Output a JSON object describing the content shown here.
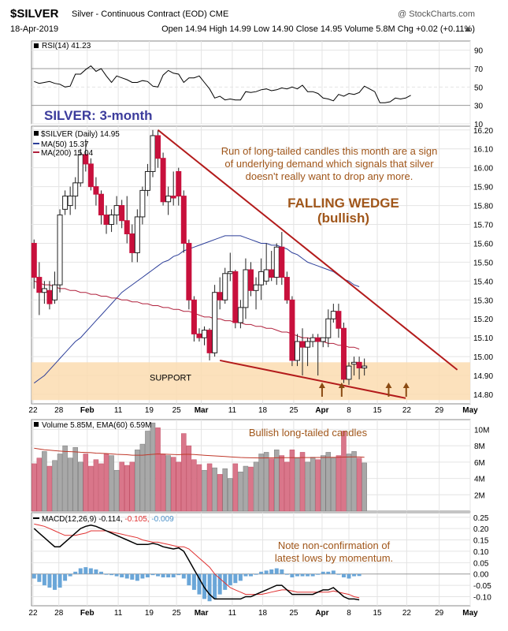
{
  "header": {
    "symbol": "$SILVER",
    "description": "Silver - Continuous Contract (EOD) CME",
    "watermark": "@ StockCharts.com",
    "date": "18-Apr-2019",
    "quote": "Open 14.94 High 14.99 Low 14.90 Close 14.95 Volume 5.8M Chg +0.02 (+0.11%)"
  },
  "chart_data": {
    "type": "candlestick",
    "x_tick_labels": [
      "22",
      "28",
      "Feb",
      "11",
      "19",
      "25",
      "Mar",
      "11",
      "18",
      "25",
      "Apr",
      "8",
      "15",
      "22",
      "29",
      "May"
    ],
    "rsi": {
      "label": "RSI(14) 41.23",
      "ylim": [
        10,
        100
      ],
      "ticks": [
        90,
        70,
        50,
        30,
        10
      ],
      "values": [
        56,
        54,
        55,
        56,
        54,
        53,
        50,
        51,
        64,
        64,
        69,
        73,
        67,
        70,
        62,
        55,
        62,
        60,
        58,
        55,
        55,
        57,
        56,
        51,
        50,
        63,
        68,
        65,
        64,
        55,
        60,
        60,
        62,
        55,
        48,
        38,
        40,
        36,
        37,
        36,
        36,
        45,
        44,
        45,
        47,
        48,
        46,
        47,
        49,
        48,
        50,
        48,
        52,
        45,
        45,
        43,
        38,
        37,
        35,
        42,
        40,
        43,
        42,
        44,
        51,
        48,
        45,
        33,
        33,
        34,
        38,
        37,
        38,
        41
      ]
    },
    "price": {
      "title": "SILVER: 3-month",
      "legend": [
        "$SILVER (Daily) 14.95",
        "MA(50) 15.37",
        "MA(200) 15.04"
      ],
      "ylim": [
        14.75,
        16.22
      ],
      "ticks": [
        16.2,
        16.1,
        16.0,
        15.9,
        15.8,
        15.7,
        15.6,
        15.5,
        15.4,
        15.3,
        15.2,
        15.1,
        15.0,
        14.9,
        14.8
      ],
      "candles": [
        [
          15.6,
          15.62,
          15.36,
          15.42
        ],
        [
          15.42,
          15.5,
          15.22,
          15.34
        ],
        [
          15.34,
          15.4,
          15.28,
          15.36
        ],
        [
          15.35,
          15.4,
          15.25,
          15.28
        ],
        [
          15.3,
          15.45,
          15.28,
          15.38
        ],
        [
          15.38,
          15.78,
          15.34,
          15.75
        ],
        [
          15.78,
          15.88,
          15.75,
          15.85
        ],
        [
          15.8,
          15.9,
          15.75,
          15.85
        ],
        [
          15.85,
          15.95,
          15.78,
          15.92
        ],
        [
          15.92,
          16.1,
          15.9,
          16.07
        ],
        [
          16.07,
          16.15,
          15.98,
          16.02
        ],
        [
          16.02,
          16.05,
          15.88,
          15.9
        ],
        [
          15.9,
          15.95,
          15.8,
          15.86
        ],
        [
          15.86,
          15.88,
          15.7,
          15.75
        ],
        [
          15.75,
          15.8,
          15.65,
          15.7
        ],
        [
          15.7,
          15.78,
          15.66,
          15.75
        ],
        [
          15.75,
          15.85,
          15.7,
          15.8
        ],
        [
          15.8,
          15.83,
          15.68,
          15.72
        ],
        [
          15.72,
          15.85,
          15.6,
          15.65
        ],
        [
          15.65,
          15.7,
          15.5,
          15.55
        ],
        [
          15.55,
          15.78,
          15.5,
          15.74
        ],
        [
          15.74,
          15.9,
          15.7,
          15.88
        ],
        [
          15.88,
          16.02,
          15.85,
          15.98
        ],
        [
          15.98,
          16.2,
          15.95,
          16.17
        ],
        [
          16.17,
          16.2,
          16.0,
          16.05
        ],
        [
          16.05,
          16.08,
          15.8,
          15.82
        ],
        [
          15.82,
          15.9,
          15.75,
          15.85
        ],
        [
          15.85,
          15.98,
          15.8,
          15.84
        ],
        [
          15.98,
          16.0,
          15.8,
          15.85
        ],
        [
          15.85,
          15.88,
          15.55,
          15.6
        ],
        [
          15.6,
          15.62,
          15.25,
          15.3
        ],
        [
          15.3,
          15.32,
          15.08,
          15.12
        ],
        [
          15.12,
          15.15,
          15.08,
          15.1
        ],
        [
          15.1,
          15.16,
          15.06,
          15.14
        ],
        [
          15.14,
          15.15,
          14.98,
          15.02
        ],
        [
          15.02,
          15.38,
          15.0,
          15.34
        ],
        [
          15.34,
          15.42,
          15.25,
          15.3
        ],
        [
          15.3,
          15.47,
          15.28,
          15.44
        ],
        [
          15.44,
          15.55,
          15.4,
          15.45
        ],
        [
          15.45,
          15.46,
          15.15,
          15.18
        ],
        [
          15.18,
          15.3,
          15.15,
          15.26
        ],
        [
          15.26,
          15.52,
          15.2,
          15.46
        ],
        [
          15.46,
          15.5,
          15.32,
          15.35
        ],
        [
          15.35,
          15.42,
          15.25,
          15.38
        ],
        [
          15.38,
          15.52,
          15.3,
          15.45
        ],
        [
          15.4,
          15.6,
          15.38,
          15.46
        ],
        [
          15.46,
          15.56,
          15.4,
          15.42
        ],
        [
          15.42,
          15.6,
          15.38,
          15.58
        ],
        [
          15.58,
          15.66,
          15.38,
          15.42
        ],
        [
          15.42,
          15.45,
          15.28,
          15.3
        ],
        [
          15.3,
          15.32,
          14.95,
          14.98
        ],
        [
          14.98,
          15.12,
          14.95,
          15.08
        ],
        [
          15.08,
          15.15,
          14.9,
          15.05
        ],
        [
          15.05,
          15.1,
          14.95,
          15.08
        ],
        [
          15.08,
          15.12,
          15.05,
          15.1
        ],
        [
          15.1,
          15.12,
          14.9,
          15.08
        ],
        [
          15.08,
          15.1,
          15.05,
          15.1
        ],
        [
          15.1,
          15.25,
          15.05,
          15.2
        ],
        [
          15.2,
          15.28,
          15.18,
          15.24
        ],
        [
          15.24,
          15.28,
          15.1,
          15.15
        ],
        [
          15.15,
          15.18,
          14.86,
          14.88
        ],
        [
          14.88,
          14.97,
          14.85,
          14.95
        ],
        [
          14.96,
          15.0,
          14.9,
          14.97
        ],
        [
          14.97,
          15.0,
          14.88,
          14.94
        ],
        [
          14.94,
          14.99,
          14.9,
          14.95
        ]
      ],
      "ma50": [
        14.86,
        14.88,
        14.9,
        14.93,
        14.96,
        14.99,
        15.02,
        15.05,
        15.08,
        15.1,
        15.13,
        15.16,
        15.19,
        15.22,
        15.25,
        15.28,
        15.31,
        15.34,
        15.36,
        15.38,
        15.4,
        15.42,
        15.44,
        15.46,
        15.48,
        15.5,
        15.51,
        15.53,
        15.54,
        15.56,
        15.57,
        15.58,
        15.59,
        15.6,
        15.61,
        15.62,
        15.63,
        15.64,
        15.64,
        15.64,
        15.64,
        15.63,
        15.62,
        15.61,
        15.6,
        15.6,
        15.59,
        15.59,
        15.58,
        15.57,
        15.55,
        15.54,
        15.52,
        15.5,
        15.49,
        15.48,
        15.47,
        15.46,
        15.45,
        15.43,
        15.41,
        15.4,
        15.38,
        15.37
      ],
      "ma200": [
        15.4,
        15.39,
        15.38,
        15.38,
        15.37,
        15.36,
        15.36,
        15.35,
        15.35,
        15.34,
        15.34,
        15.33,
        15.33,
        15.32,
        15.32,
        15.31,
        15.31,
        15.3,
        15.3,
        15.29,
        15.29,
        15.28,
        15.28,
        15.27,
        15.27,
        15.26,
        15.26,
        15.25,
        15.25,
        15.24,
        15.24,
        15.23,
        15.22,
        15.21,
        15.21,
        15.2,
        15.2,
        15.19,
        15.19,
        15.18,
        15.18,
        15.17,
        15.17,
        15.16,
        15.16,
        15.15,
        15.15,
        15.14,
        15.13,
        15.13,
        15.12,
        15.11,
        15.1,
        15.1,
        15.09,
        15.09,
        15.08,
        15.07,
        15.07,
        15.06,
        15.06,
        15.05,
        15.05,
        15.04
      ],
      "support_zone": [
        14.77,
        14.97
      ],
      "support_label": "SUPPORT",
      "trendlines": [
        {
          "from": [
            24,
            16.2
          ],
          "to": [
            82,
            14.93
          ]
        },
        {
          "from": [
            36,
            14.98
          ],
          "to": [
            72,
            14.78
          ]
        }
      ],
      "annotations": [
        "Run of long-tailed candles this month are a sign",
        "of underlying demand which signals that silver",
        "doesn't really want to drop any more.",
        "FALLING WEDGE",
        "(bullish)"
      ]
    },
    "volume": {
      "label": "Volume 5.85M, EMA(60) 6.59M",
      "annotation": "Bullish long-tailed candles",
      "ylim": [
        0,
        11.2
      ],
      "ticks": [
        "10M",
        "8M",
        "6M",
        "4M",
        "2M"
      ],
      "tick_values": [
        10,
        8,
        6,
        4,
        2
      ],
      "values": [
        5.8,
        6.5,
        7.3,
        5.5,
        6.2,
        7.0,
        8.0,
        6.5,
        7.8,
        6.0,
        7.0,
        5.5,
        6.3,
        5.8,
        7.0,
        6.8,
        5.0,
        6.0,
        5.6,
        6.0,
        7.5,
        8.2,
        9.8,
        10.8,
        10.2,
        7.0,
        6.8,
        6.6,
        6.0,
        9.5,
        8.0,
        6.3,
        5.7,
        5.0,
        5.8,
        5.3,
        4.5,
        5.2,
        4.0,
        5.8,
        4.8,
        5.5,
        5.4,
        6.0,
        7.0,
        7.2,
        6.4,
        7.5,
        6.8,
        6.0,
        7.5,
        6.5,
        7.2,
        6.0,
        6.6,
        6.3,
        6.8,
        7.2,
        6.5,
        6.8,
        9.8,
        7.0,
        7.3,
        6.5,
        5.9
      ],
      "ema60": [
        7.7,
        7.6,
        7.5,
        7.45,
        7.4,
        7.35,
        7.3,
        7.28,
        7.25,
        7.2,
        7.18,
        7.15,
        7.1,
        7.08,
        7.05,
        7.0,
        6.95,
        6.92,
        6.9,
        6.85,
        6.85,
        6.85,
        6.9,
        6.95,
        7.0,
        6.98,
        6.95,
        6.92,
        6.9,
        6.95,
        6.95,
        6.92,
        6.88,
        6.84,
        6.8,
        6.76,
        6.72,
        6.68,
        6.64,
        6.6,
        6.57,
        6.55,
        6.53,
        6.52,
        6.51,
        6.52,
        6.52,
        6.53,
        6.54,
        6.54,
        6.55,
        6.55,
        6.56,
        6.56,
        6.56,
        6.57,
        6.57,
        6.58,
        6.58,
        6.59,
        6.61,
        6.62,
        6.63,
        6.63,
        6.59
      ]
    },
    "macd": {
      "label_prefix": "MACD(12,26,9)",
      "label_macd": "-0.114,",
      "label_signal": "-0.105,",
      "label_hist": "-0.009",
      "annotation": [
        "Note non-confirmation of",
        "latest lows by momentum."
      ],
      "ylim": [
        -0.14,
        0.27
      ],
      "ticks": [
        0.25,
        0.2,
        0.15,
        0.1,
        0.05,
        0.0,
        -0.05,
        -0.1
      ],
      "macd": [
        0.2,
        0.18,
        0.16,
        0.14,
        0.12,
        0.12,
        0.14,
        0.16,
        0.18,
        0.2,
        0.21,
        0.215,
        0.21,
        0.2,
        0.19,
        0.18,
        0.17,
        0.16,
        0.15,
        0.14,
        0.13,
        0.13,
        0.13,
        0.135,
        0.13,
        0.12,
        0.115,
        0.11,
        0.115,
        0.1,
        0.06,
        0.02,
        -0.02,
        -0.06,
        -0.09,
        -0.11,
        -0.11,
        -0.11,
        -0.11,
        -0.11,
        -0.11,
        -0.1,
        -0.1,
        -0.09,
        -0.08,
        -0.07,
        -0.06,
        -0.05,
        -0.05,
        -0.07,
        -0.09,
        -0.09,
        -0.09,
        -0.09,
        -0.09,
        -0.08,
        -0.07,
        -0.07,
        -0.06,
        -0.08,
        -0.1,
        -0.11,
        -0.11,
        -0.114
      ],
      "signal": [
        0.22,
        0.215,
        0.21,
        0.2,
        0.19,
        0.18,
        0.17,
        0.17,
        0.17,
        0.175,
        0.18,
        0.19,
        0.19,
        0.19,
        0.19,
        0.185,
        0.18,
        0.175,
        0.17,
        0.165,
        0.16,
        0.15,
        0.145,
        0.14,
        0.14,
        0.135,
        0.13,
        0.125,
        0.12,
        0.12,
        0.11,
        0.09,
        0.07,
        0.05,
        0.03,
        0.0,
        -0.02,
        -0.04,
        -0.06,
        -0.07,
        -0.08,
        -0.09,
        -0.09,
        -0.09,
        -0.09,
        -0.085,
        -0.08,
        -0.075,
        -0.07,
        -0.07,
        -0.075,
        -0.08,
        -0.08,
        -0.08,
        -0.08,
        -0.08,
        -0.08,
        -0.08,
        -0.075,
        -0.08,
        -0.085,
        -0.09,
        -0.1,
        -0.105
      ]
    }
  }
}
